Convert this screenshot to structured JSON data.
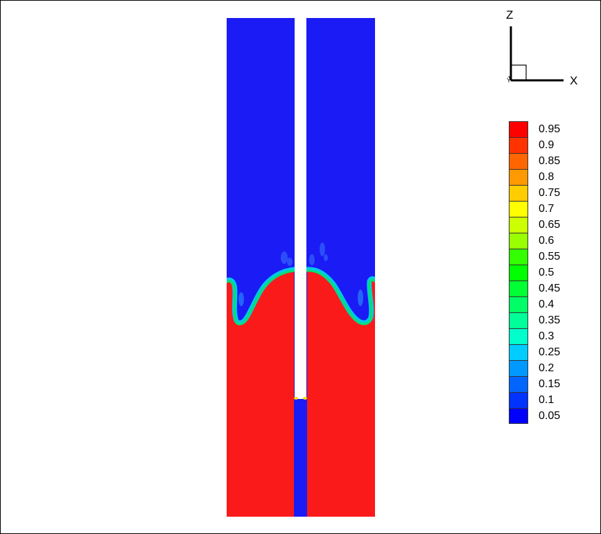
{
  "axes": {
    "vertical_label": "Z",
    "horizontal_label": "X",
    "depth_label": "Y"
  },
  "legend": {
    "levels": [
      {
        "label": "0.95",
        "color": "#ff0000"
      },
      {
        "label": "0.9",
        "color": "#ff3300"
      },
      {
        "label": "0.85",
        "color": "#ff6600"
      },
      {
        "label": "0.8",
        "color": "#ff9900"
      },
      {
        "label": "0.75",
        "color": "#ffcc00"
      },
      {
        "label": "0.7",
        "color": "#ffff00"
      },
      {
        "label": "0.65",
        "color": "#ccff00"
      },
      {
        "label": "0.6",
        "color": "#99ff00"
      },
      {
        "label": "0.55",
        "color": "#33ff00"
      },
      {
        "label": "0.5",
        "color": "#00ff00"
      },
      {
        "label": "0.45",
        "color": "#00ff33"
      },
      {
        "label": "0.4",
        "color": "#00ff66"
      },
      {
        "label": "0.35",
        "color": "#00ff99"
      },
      {
        "label": "0.3",
        "color": "#00ffcc"
      },
      {
        "label": "0.25",
        "color": "#00ccff"
      },
      {
        "label": "0.2",
        "color": "#0099ff"
      },
      {
        "label": "0.15",
        "color": "#0066ff"
      },
      {
        "label": "0.1",
        "color": "#0033ff"
      },
      {
        "label": "0.05",
        "color": "#0000ff"
      }
    ]
  },
  "colors": {
    "upper_phase": "#1b1bf5",
    "lower_phase": "#fa1a1a",
    "interface_inner": "#00e070",
    "interface_outer": "#00c8e8",
    "tube": "#ffffff",
    "tube_tip": "#ffdd00"
  }
}
